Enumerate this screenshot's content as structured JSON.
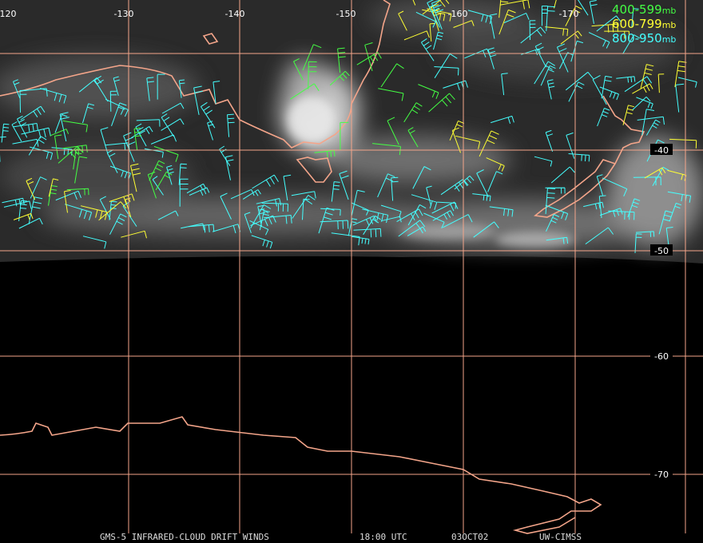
{
  "map": {
    "longitude_labels": [
      "-120",
      "-130",
      "-140",
      "-150",
      "-160",
      "-170"
    ],
    "latitude_labels": [
      "-40",
      "-50",
      "-60",
      "-70"
    ],
    "legend": [
      {
        "range": "400-599",
        "unit": "mb",
        "color": "#44ff44"
      },
      {
        "range": "600-799",
        "unit": "mb",
        "color": "#ffff33"
      },
      {
        "range": "800-950",
        "unit": "mb",
        "color": "#44ffff"
      }
    ],
    "footer": [
      "GMS-5 INFRARED-CLOUD DRIFT WINDS",
      "18:00 UTC",
      "03OCT02",
      "UW-CIMSS"
    ]
  }
}
